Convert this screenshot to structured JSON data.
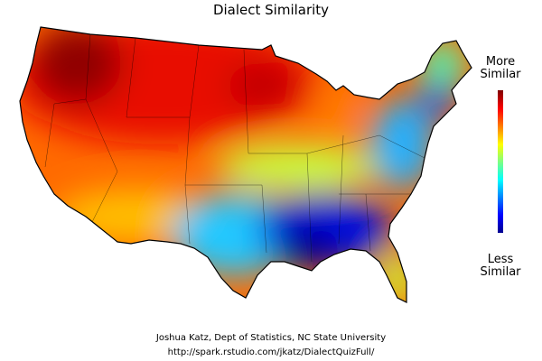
{
  "title": "Dialect Similarity",
  "legend": {
    "high": [
      "More",
      "Similar"
    ],
    "low": [
      "Less",
      "Similar"
    ]
  },
  "credits": [
    "Joshua Katz, Dept of Statistics, NC State University",
    "http://spark.rstudio.com/jkatz/DialectQuizFull/"
  ]
}
